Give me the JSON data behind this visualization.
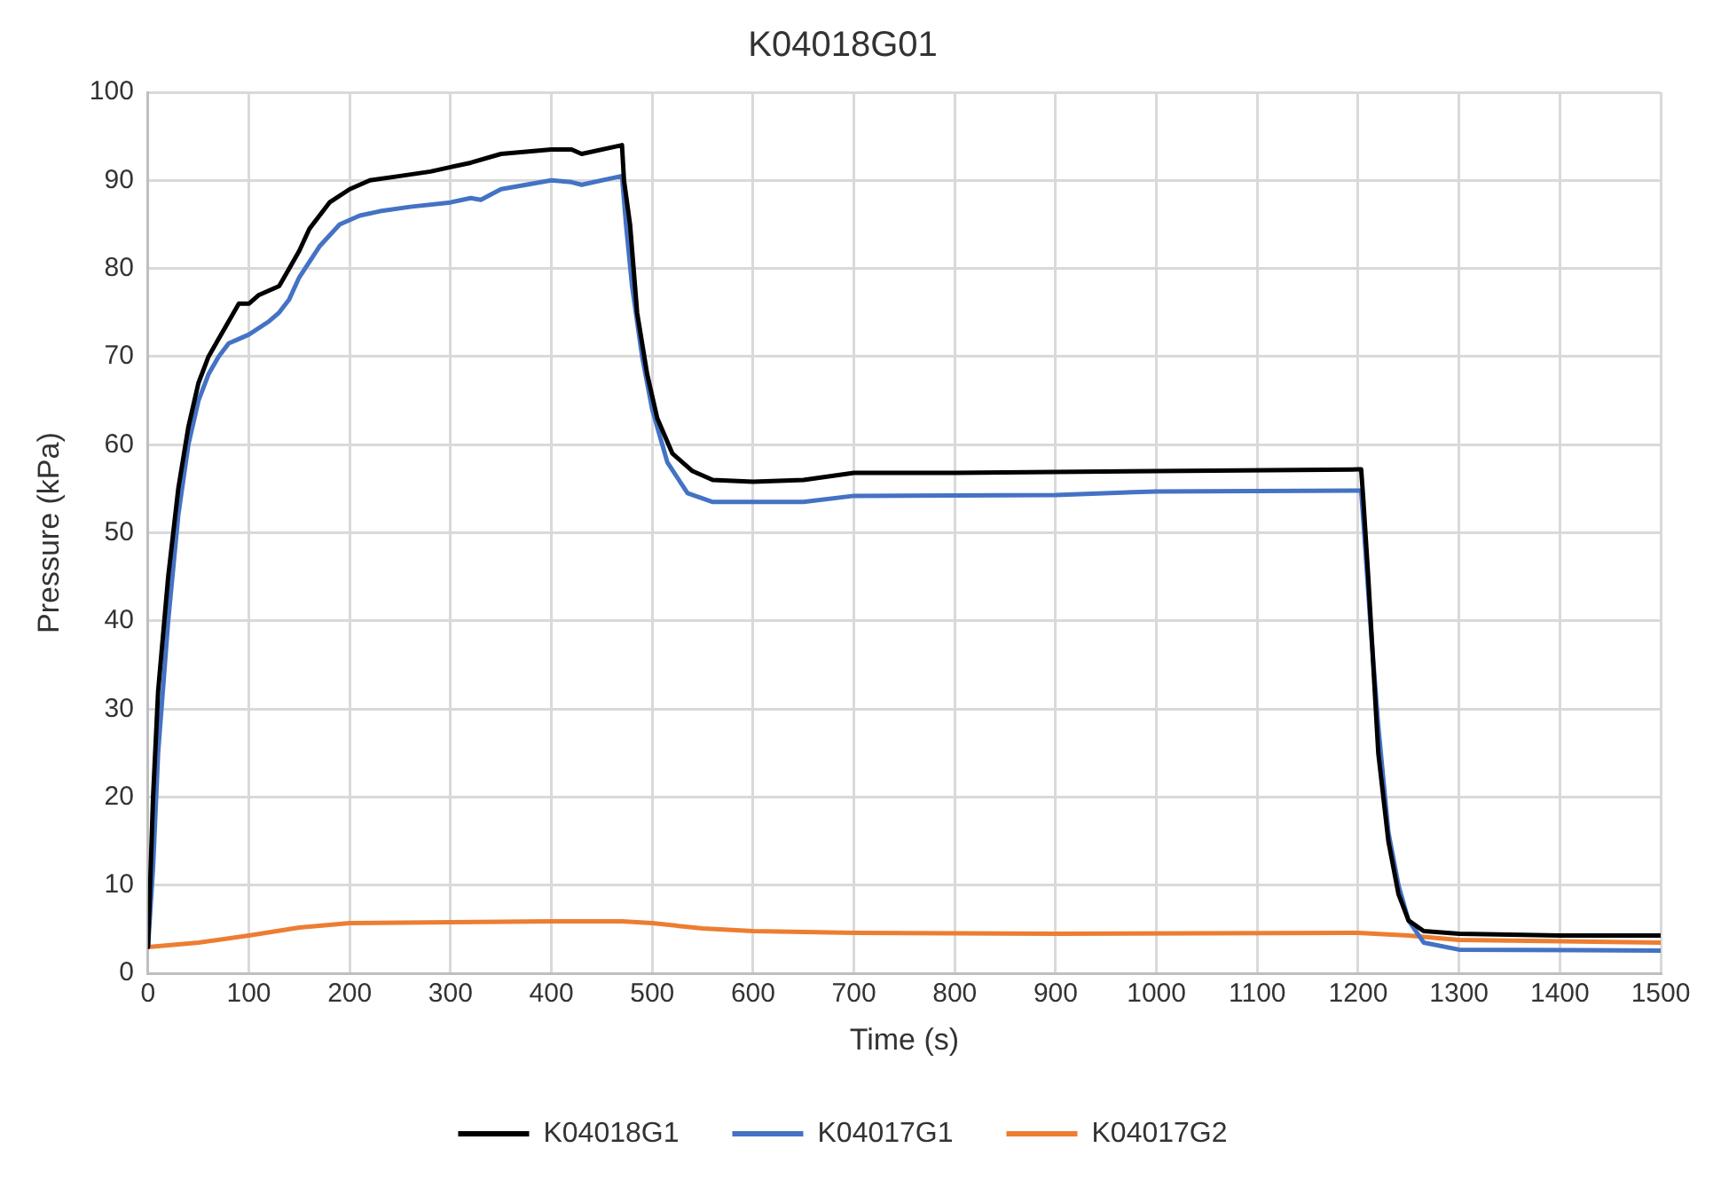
{
  "chart_data": {
    "type": "line",
    "title": "K04018G01",
    "xlabel": "Time (s)",
    "ylabel": "Pressure (kPa)",
    "xlim": [
      0,
      1500
    ],
    "xticks": [
      0,
      100,
      200,
      300,
      400,
      500,
      600,
      700,
      800,
      900,
      1000,
      1100,
      1200,
      1300,
      1400,
      1500
    ],
    "ylim": [
      0,
      100
    ],
    "yticks": [
      0,
      10,
      20,
      30,
      40,
      50,
      60,
      70,
      80,
      90,
      100
    ],
    "grid": true,
    "legend": "bottom",
    "marker": "none",
    "line_style": "solid",
    "series": [
      {
        "name": "K04018G1",
        "color": "#000000",
        "x": [
          0,
          5,
          10,
          20,
          30,
          40,
          50,
          60,
          70,
          80,
          90,
          100,
          110,
          130,
          140,
          150,
          160,
          180,
          200,
          220,
          250,
          280,
          300,
          320,
          350,
          400,
          420,
          430,
          470,
          472,
          478,
          485,
          495,
          505,
          520,
          540,
          560,
          600,
          650,
          700,
          800,
          1000,
          1200,
          1203,
          1205,
          1210,
          1215,
          1220,
          1230,
          1240,
          1250,
          1265,
          1300,
          1400,
          1500
        ],
        "values": [
          3,
          20,
          32,
          45,
          55,
          62,
          67,
          70,
          72,
          74,
          76,
          76,
          77,
          78,
          80,
          82,
          84.5,
          87.5,
          89,
          90,
          90.5,
          91,
          91.5,
          92,
          93,
          93.5,
          93.5,
          93,
          94,
          90,
          85,
          75,
          68,
          63,
          59,
          57,
          56,
          55.8,
          56,
          56.8,
          56.8,
          57,
          57.2,
          57.2,
          54,
          45,
          35,
          25,
          15,
          9,
          6,
          4.8,
          4.5,
          4.3,
          4.3
        ]
      },
      {
        "name": "K04017G1",
        "color": "#4472c4",
        "x": [
          0,
          5,
          10,
          20,
          30,
          40,
          50,
          60,
          70,
          80,
          90,
          100,
          120,
          130,
          140,
          150,
          170,
          190,
          210,
          230,
          260,
          300,
          320,
          330,
          350,
          400,
          420,
          430,
          470,
          474,
          480,
          490,
          500,
          515,
          535,
          560,
          650,
          700,
          900,
          1000,
          1200,
          1203,
          1206,
          1212,
          1220,
          1230,
          1240,
          1250,
          1265,
          1300,
          1500
        ],
        "values": [
          3,
          12,
          25,
          40,
          52,
          60,
          65,
          68,
          70,
          71.5,
          72,
          72.5,
          74,
          75,
          76.5,
          79,
          82.5,
          85,
          86,
          86.5,
          87,
          87.5,
          88,
          87.8,
          89,
          90,
          89.8,
          89.5,
          90.5,
          85,
          78,
          70,
          64,
          58,
          54.5,
          53.5,
          53.5,
          54.2,
          54.3,
          54.7,
          54.8,
          54.8,
          50,
          40,
          28,
          16,
          10,
          6,
          3.5,
          2.7,
          2.6
        ]
      },
      {
        "name": "K04017G2",
        "color": "#ed7d31",
        "x": [
          0,
          50,
          100,
          150,
          200,
          300,
          400,
          470,
          500,
          550,
          600,
          700,
          900,
          1200,
          1250,
          1300,
          1500
        ],
        "values": [
          3,
          3.5,
          4.3,
          5.2,
          5.7,
          5.8,
          5.9,
          5.9,
          5.7,
          5.1,
          4.8,
          4.6,
          4.5,
          4.6,
          4.3,
          3.8,
          3.5
        ]
      }
    ]
  }
}
